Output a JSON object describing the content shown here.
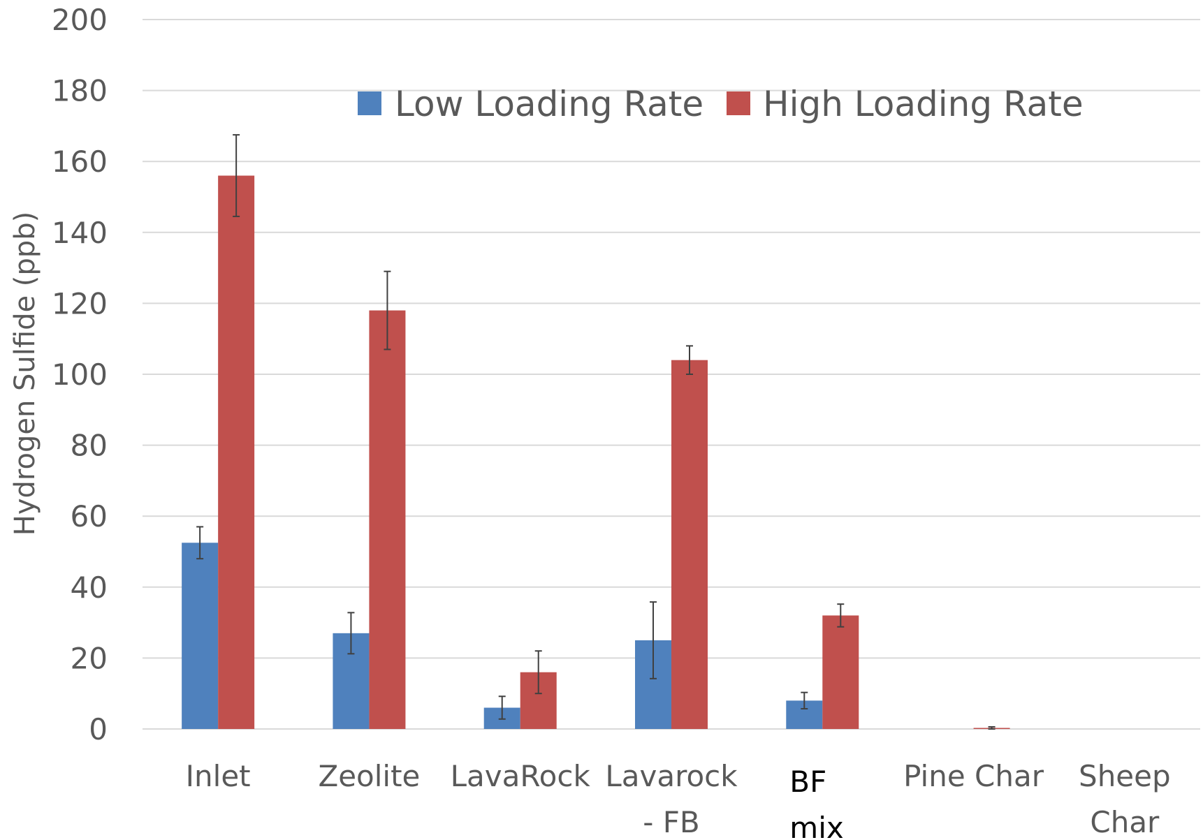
{
  "chart_data": {
    "type": "bar",
    "title": "",
    "xlabel": "",
    "ylabel": "Hydrogen Sulfide (ppb)",
    "ylim": [
      0,
      200
    ],
    "yticks": [
      0,
      20,
      40,
      60,
      80,
      100,
      120,
      140,
      160,
      180,
      200
    ],
    "grid": true,
    "legend_position": "top-right",
    "categories": [
      [
        "Inlet"
      ],
      [
        "Zeolite"
      ],
      [
        "LavaRock"
      ],
      [
        "Lavarock",
        "- FB"
      ],
      [
        "BF",
        "mix"
      ],
      [
        "Pine Char"
      ],
      [
        "Sheep",
        "Char"
      ]
    ],
    "series": [
      {
        "name": "Low Loading Rate",
        "color": "#4f81bd",
        "values": [
          52.5,
          27,
          6,
          25,
          8,
          0,
          0
        ],
        "errors": [
          4.5,
          5.8,
          3.2,
          10.8,
          2.3,
          0,
          0
        ]
      },
      {
        "name": "High Loading Rate",
        "color": "#c0504d",
        "values": [
          156,
          118,
          16,
          104,
          32,
          0.3,
          0
        ],
        "errors": [
          11.5,
          11,
          6,
          4,
          3.2,
          0.3,
          0
        ]
      }
    ]
  }
}
